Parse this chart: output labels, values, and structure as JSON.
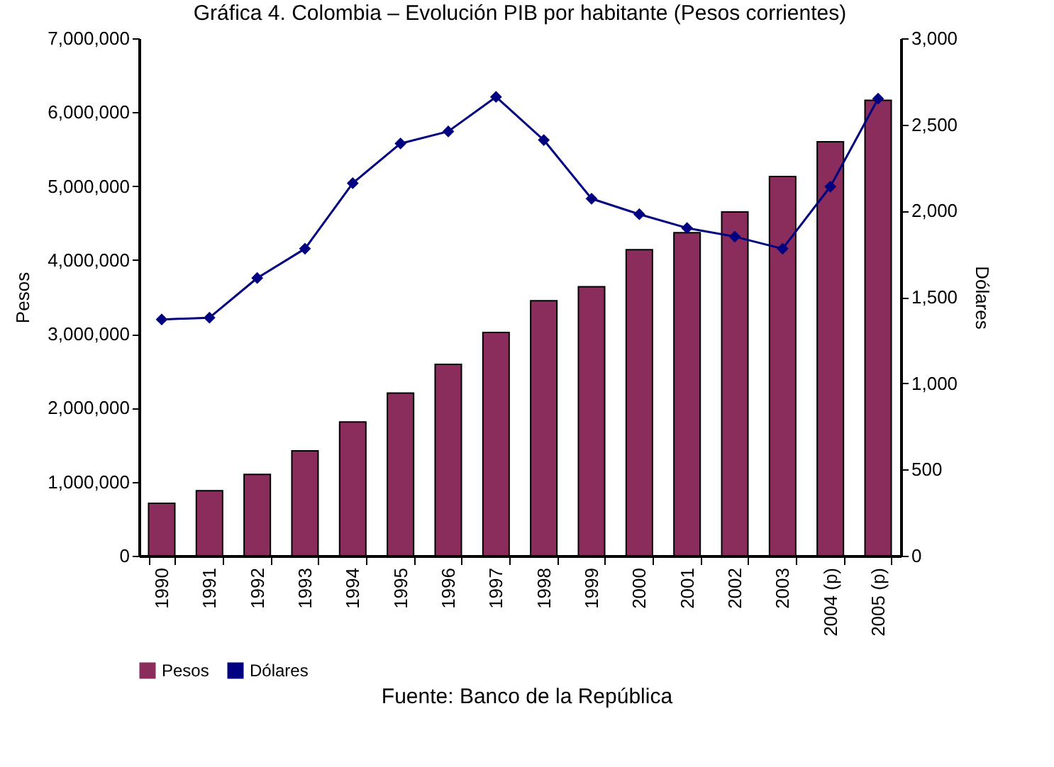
{
  "chart_data": {
    "type": "bar",
    "title": "Gráfica 4.  Colombia – Evolución PIB por habitante (Pesos corrientes)",
    "ylabel": "Pesos",
    "y2label": "Dólares",
    "categories": [
      "1990",
      "1991",
      "1992",
      "1993",
      "1994",
      "1995",
      "1996",
      "1997",
      "1998",
      "1999",
      "2000",
      "2001",
      "2002",
      "2003",
      "2004 (p)",
      "2005 (p)"
    ],
    "series": [
      {
        "name": "Pesos",
        "color": "#8b2d5c",
        "values": [
          710000,
          880000,
          1100000,
          1420000,
          1810000,
          2200000,
          2590000,
          3020000,
          3450000,
          3640000,
          4140000,
          4370000,
          4650000,
          5130000,
          5600000,
          6160000
        ]
      },
      {
        "name": "Dólares",
        "type": "line",
        "axis": "y2",
        "color": "#000080",
        "marker": "diamond",
        "values": [
          1370,
          1380,
          1610,
          1780,
          2160,
          2390,
          2460,
          2660,
          2410,
          2070,
          1980,
          1900,
          1850,
          1780,
          2140,
          2650
        ]
      }
    ],
    "ylim": [
      0,
      7000000
    ],
    "yticks": [
      0,
      {
        "value": 1000000,
        "label": "1,000,000"
      },
      {
        "value": 2000000,
        "label": "2,000,000"
      },
      {
        "value": 3000000,
        "label": "3,000,000"
      },
      {
        "value": 4000000,
        "label": "4,000,000"
      },
      {
        "value": 5000000,
        "label": "5,000,000"
      },
      {
        "value": 6000000,
        "label": "6,000,000"
      },
      {
        "value": 7000000,
        "label": "7,000,000"
      }
    ],
    "y2lim": [
      0,
      3000
    ],
    "y2ticks": [
      0,
      500,
      {
        "value": 1000,
        "label": "1,000"
      },
      {
        "value": 1500,
        "label": "1,500"
      },
      {
        "value": 2000,
        "label": "2,000"
      },
      {
        "value": 2500,
        "label": "2,500"
      },
      {
        "value": 3000,
        "label": "3,000"
      }
    ],
    "grid": false,
    "legend": "bottom",
    "annotations": [
      "Fuente: Banco de la República"
    ]
  }
}
